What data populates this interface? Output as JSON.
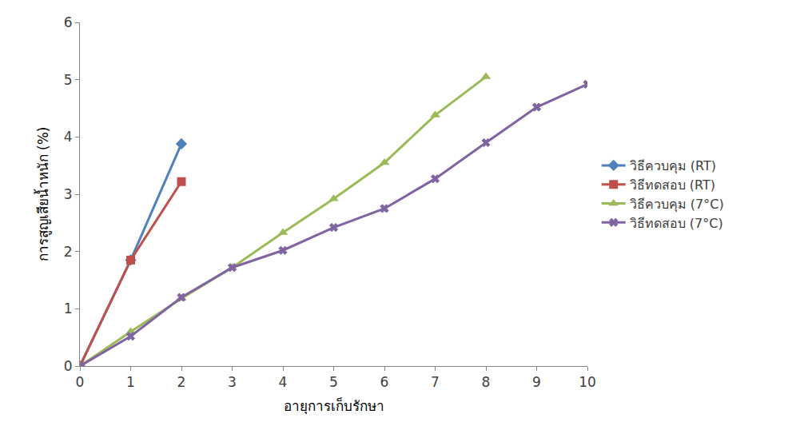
{
  "chart_data": {
    "type": "line",
    "x_label": "อายุการเก็บรักษา",
    "y_label": "การสูญเสียน้ำหนัก (%)",
    "x": [
      0,
      1,
      2,
      3,
      4,
      5,
      6,
      7,
      8,
      9,
      10
    ],
    "xlim": [
      0,
      10
    ],
    "xticks": [
      0,
      1,
      2,
      3,
      4,
      5,
      6,
      7,
      8,
      9,
      10
    ],
    "ylim": [
      0,
      6
    ],
    "yticks": [
      0,
      1,
      2,
      3,
      4,
      5,
      6
    ],
    "grid": false,
    "legend": "right",
    "series": [
      {
        "name": "วิธีควบคุม (RT)",
        "color": "#4f81bd",
        "marker": "diamond",
        "line_style": "solid",
        "values": [
          0,
          1.85,
          3.88,
          null,
          null,
          null,
          null,
          null,
          null,
          null,
          null
        ]
      },
      {
        "name": "วิธีทดสอบ (RT)",
        "color": "#c0504d",
        "marker": "square",
        "line_style": "solid",
        "values": [
          0,
          1.85,
          3.22,
          null,
          null,
          null,
          null,
          null,
          null,
          null,
          null
        ]
      },
      {
        "name": "วิธีควบคุม (7°C)",
        "color": "#9bbb59",
        "marker": "triangle-up",
        "line_style": "solid",
        "values": [
          0,
          0.6,
          1.18,
          1.72,
          2.33,
          2.92,
          3.55,
          4.38,
          5.05,
          null,
          null
        ]
      },
      {
        "name": "วิธีทดสอบ (7°C)",
        "color": "#8064a2",
        "marker": "x",
        "line_style": "solid",
        "values": [
          0,
          0.52,
          1.2,
          1.72,
          2.02,
          2.42,
          2.75,
          3.27,
          3.9,
          4.52,
          4.92
        ]
      }
    ]
  }
}
